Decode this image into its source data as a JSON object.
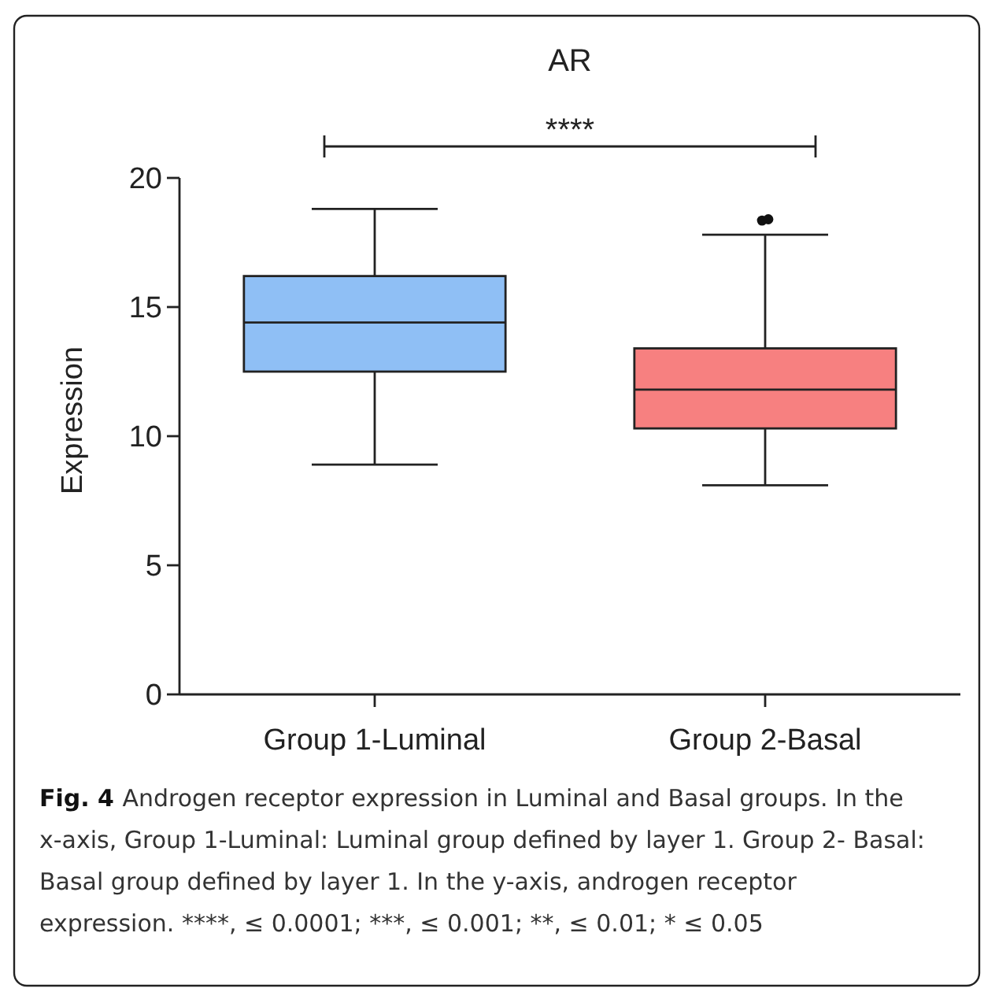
{
  "chart_data": {
    "type": "box",
    "title": "AR",
    "ylabel": "Expression",
    "categories": [
      "Group 1-Luminal",
      "Group 2-Basal"
    ],
    "colors": [
      "#8fbff5",
      "#f78080"
    ],
    "boxes": [
      {
        "low": 8.9,
        "q1": 12.5,
        "median": 14.4,
        "q3": 16.2,
        "high": 18.8
      },
      {
        "low": 8.1,
        "q1": 10.3,
        "median": 11.8,
        "q3": 13.4,
        "high": 17.8,
        "outliers": [
          18.35,
          18.4
        ]
      }
    ],
    "ylim": [
      0,
      20
    ],
    "yticks": [
      0,
      5,
      10,
      15,
      20
    ],
    "annotations": [
      "****",
      "Fig. 4",
      "Androgen receptor expression in Luminal and Basal groups. In the x-axis, Group 1-Luminal: Luminal group defined by layer 1. Group 2- Basal: Basal group defined by layer 1. In the y-axis, androgen receptor expression. ****, ≤ 0.0001; ***, ≤ 0.001; **, ≤ 0.01; * ≤ 0.05"
    ]
  }
}
